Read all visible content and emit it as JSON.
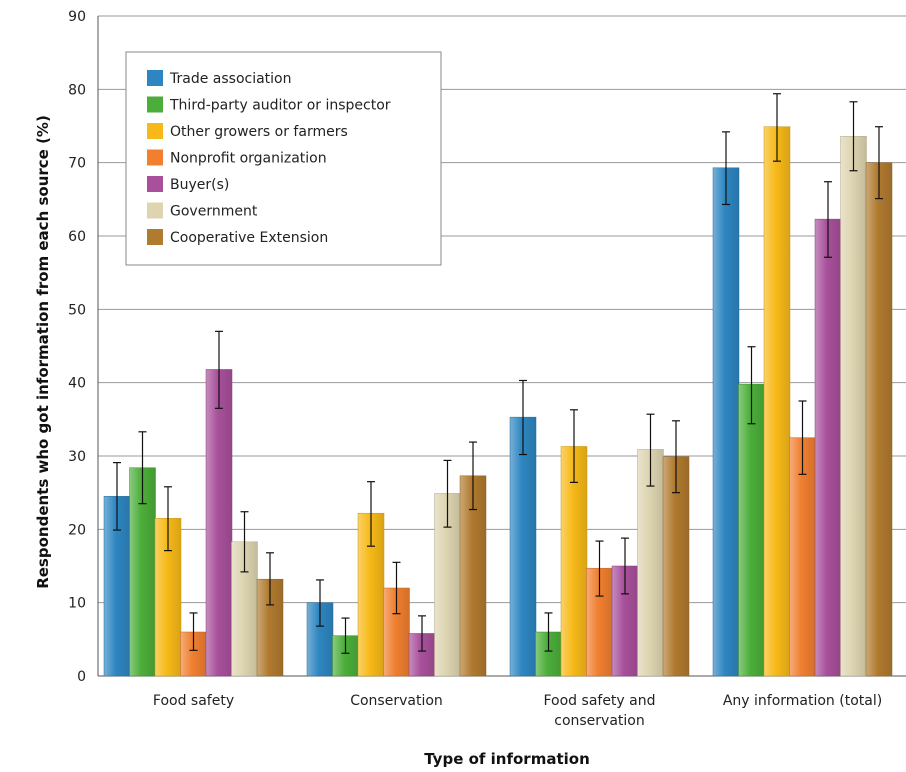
{
  "chart_data": {
    "type": "bar",
    "title": "",
    "xlabel": "Type of information",
    "ylabel": "Respondents who got information from each source (%)",
    "ylim": [
      0,
      90
    ],
    "yticks": [
      0,
      10,
      20,
      30,
      40,
      50,
      60,
      70,
      80,
      90
    ],
    "grid": true,
    "legend_position": "top-left",
    "categories": [
      [
        "Food safety"
      ],
      [
        "Conservation"
      ],
      [
        "Food safety and",
        "conservation"
      ],
      [
        "Any information (total)"
      ]
    ],
    "series": [
      {
        "name": "Trade association",
        "color": "#2e86c1",
        "values": [
          24.5,
          10.0,
          35.3,
          69.3
        ],
        "err_low": [
          19.9,
          6.8,
          30.2,
          64.3
        ],
        "err_high": [
          29.1,
          13.1,
          40.3,
          74.2
        ]
      },
      {
        "name": "Third-party auditor or inspector",
        "color": "#4cae3a",
        "values": [
          28.4,
          5.5,
          6.0,
          39.8
        ],
        "err_low": [
          23.5,
          3.1,
          3.4,
          34.4
        ],
        "err_high": [
          33.3,
          7.9,
          8.6,
          44.9
        ]
      },
      {
        "name": "Other growers or farmers",
        "color": "#f7b918",
        "values": [
          21.5,
          22.2,
          31.3,
          74.9
        ],
        "err_low": [
          17.1,
          17.7,
          26.4,
          70.2
        ],
        "err_high": [
          25.8,
          26.5,
          36.3,
          79.4
        ]
      },
      {
        "name": "Nonprofit organization",
        "color": "#f07f30",
        "values": [
          6.0,
          12.0,
          14.7,
          32.5
        ],
        "err_low": [
          3.5,
          8.5,
          10.9,
          27.5
        ],
        "err_high": [
          8.6,
          15.5,
          18.4,
          37.5
        ]
      },
      {
        "name": "Buyer(s)",
        "color": "#a8509b",
        "values": [
          41.8,
          5.8,
          15.0,
          62.3
        ],
        "err_low": [
          36.5,
          3.4,
          11.2,
          57.1
        ],
        "err_high": [
          47.0,
          8.2,
          18.8,
          67.4
        ]
      },
      {
        "name": "Government",
        "color": "#ddd4b0",
        "values": [
          18.3,
          24.9,
          30.9,
          73.6
        ],
        "err_low": [
          14.2,
          20.3,
          25.9,
          68.9
        ],
        "err_high": [
          22.4,
          29.4,
          35.7,
          78.3
        ]
      },
      {
        "name": "Cooperative Extension",
        "color": "#b07a2f",
        "values": [
          13.2,
          27.3,
          29.9,
          70.0
        ],
        "err_low": [
          9.7,
          22.7,
          25.0,
          65.1
        ],
        "err_high": [
          16.8,
          31.9,
          34.8,
          74.9
        ]
      }
    ]
  }
}
